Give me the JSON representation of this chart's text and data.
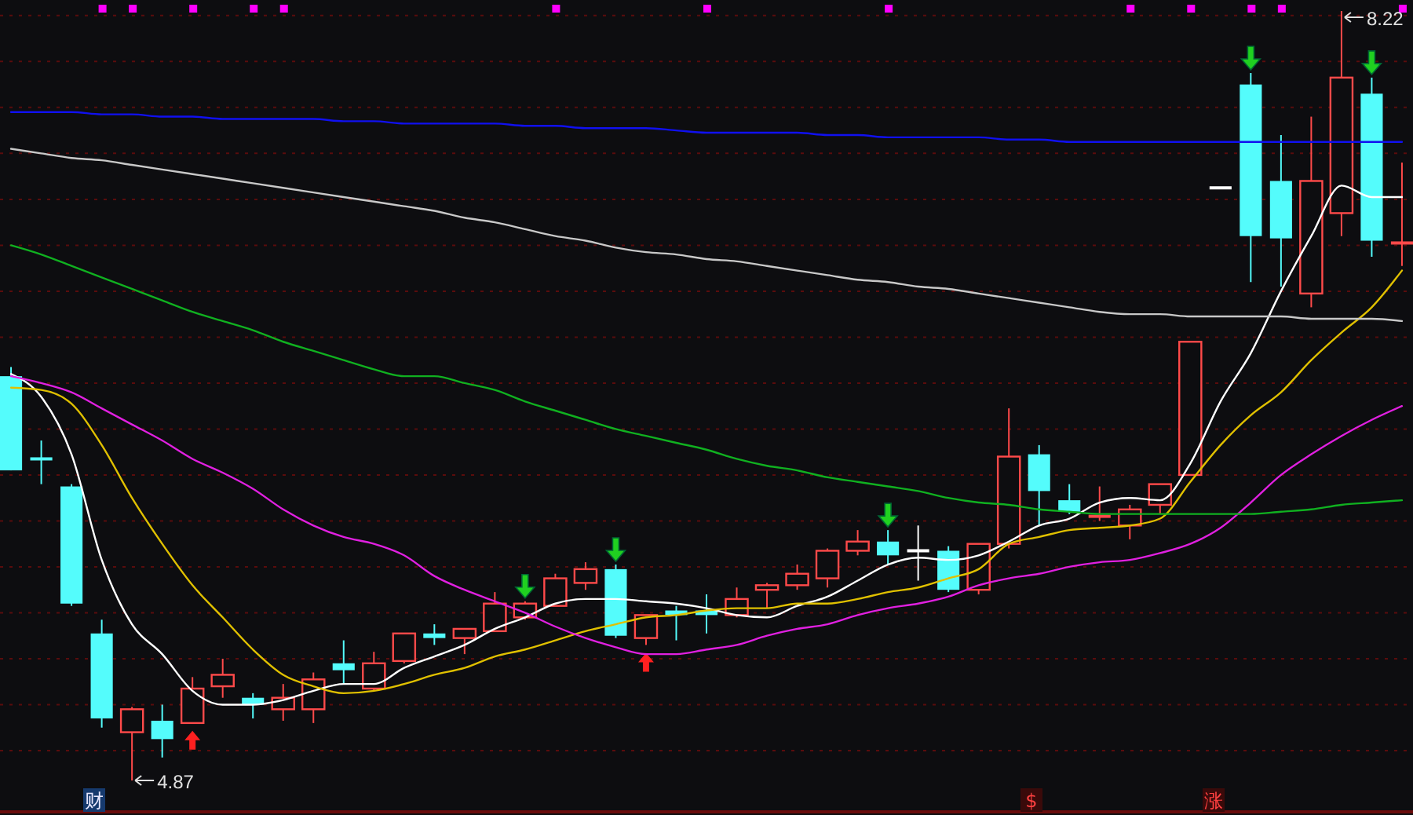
{
  "chart_data": {
    "type": "candlestick",
    "grid": true,
    "yticks": [
      {
        "value": 5.0,
        "label": null
      },
      {
        "value": 5.2,
        "label": null
      },
      {
        "value": 5.4,
        "label": null
      },
      {
        "value": 5.6,
        "label": null
      },
      {
        "value": 5.8,
        "label": null
      },
      {
        "value": 6.0,
        "label": null
      },
      {
        "value": 6.2,
        "label": null
      },
      {
        "value": 6.4,
        "label": null
      },
      {
        "value": 6.6,
        "label": null
      },
      {
        "value": 6.8,
        "label": null
      },
      {
        "value": 7.0,
        "label": null
      },
      {
        "value": 7.2,
        "label": null
      },
      {
        "value": 7.4,
        "label": null
      },
      {
        "value": 7.6,
        "label": null
      },
      {
        "value": 7.8,
        "label": null
      },
      {
        "value": 8.0,
        "label": null
      },
      {
        "value": 8.2,
        "label": null
      }
    ],
    "categories": [
      null,
      null,
      null,
      null,
      null,
      null,
      null,
      null,
      null,
      null,
      null,
      null,
      null,
      null,
      null,
      null,
      null,
      null,
      null,
      null,
      null,
      null,
      null,
      null,
      null,
      null,
      null,
      null,
      null,
      null,
      null,
      null,
      null,
      null,
      null,
      null,
      null,
      null,
      null,
      null,
      null,
      null,
      null,
      null,
      null,
      null,
      null
    ],
    "ohlc": [
      [
        6.63,
        6.67,
        6.22,
        6.22
      ],
      [
        6.27,
        6.35,
        6.16,
        6.27
      ],
      [
        6.15,
        6.16,
        5.63,
        5.64
      ],
      [
        5.51,
        5.57,
        5.1,
        5.14
      ],
      [
        5.08,
        5.19,
        4.87,
        5.18
      ],
      [
        5.13,
        5.2,
        4.97,
        5.05
      ],
      [
        5.12,
        5.32,
        5.12,
        5.27
      ],
      [
        5.28,
        5.4,
        5.23,
        5.33
      ],
      [
        5.23,
        5.25,
        5.14,
        5.2
      ],
      [
        5.18,
        5.29,
        5.13,
        5.23
      ],
      [
        5.18,
        5.34,
        5.12,
        5.31
      ],
      [
        5.38,
        5.48,
        5.29,
        5.35
      ],
      [
        5.27,
        5.43,
        5.26,
        5.38
      ],
      [
        5.39,
        5.51,
        5.38,
        5.51
      ],
      [
        5.51,
        5.55,
        5.46,
        5.49
      ],
      [
        5.49,
        5.53,
        5.42,
        5.53
      ],
      [
        5.52,
        5.69,
        5.52,
        5.64
      ],
      [
        5.58,
        5.65,
        5.57,
        5.64
      ],
      [
        5.63,
        5.77,
        5.63,
        5.75
      ],
      [
        5.73,
        5.82,
        5.7,
        5.79
      ],
      [
        5.79,
        5.81,
        5.49,
        5.5
      ],
      [
        5.49,
        5.59,
        5.46,
        5.59
      ],
      [
        5.61,
        5.63,
        5.48,
        5.59
      ],
      [
        5.61,
        5.68,
        5.51,
        5.59
      ],
      [
        5.59,
        5.71,
        5.58,
        5.66
      ],
      [
        5.7,
        5.73,
        5.62,
        5.72
      ],
      [
        5.72,
        5.81,
        5.7,
        5.77
      ],
      [
        5.75,
        5.88,
        5.71,
        5.87
      ],
      [
        5.87,
        5.96,
        5.85,
        5.91
      ],
      [
        5.91,
        5.96,
        5.81,
        5.85
      ],
      [
        5.87,
        5.98,
        5.74,
        5.87
      ],
      [
        5.87,
        5.89,
        5.69,
        5.7
      ],
      [
        5.7,
        5.9,
        5.68,
        5.9
      ],
      [
        5.9,
        6.49,
        5.88,
        6.28
      ],
      [
        6.29,
        6.33,
        5.98,
        6.13
      ],
      [
        6.09,
        6.16,
        6.03,
        6.04
      ],
      [
        6.02,
        6.15,
        6.0,
        6.02
      ],
      [
        5.98,
        6.07,
        5.92,
        6.05
      ],
      [
        6.07,
        6.16,
        6.03,
        6.16
      ],
      [
        6.2,
        6.78,
        6.2,
        6.78
      ],
      [
        7.45,
        7.45,
        7.45,
        7.45
      ],
      [
        7.9,
        7.95,
        7.04,
        7.24
      ],
      [
        7.48,
        7.68,
        7.02,
        7.23
      ],
      [
        6.99,
        7.76,
        6.93,
        7.48
      ],
      [
        7.34,
        8.22,
        7.24,
        7.93
      ],
      [
        7.86,
        7.93,
        7.15,
        7.22
      ],
      [
        7.21,
        7.56,
        7.11,
        7.21
      ]
    ],
    "colors": [
      "#54fcfc",
      "#54fcfc",
      "#54fcfc",
      "#54fcfc",
      "#ff4a4a",
      "#54fcfc",
      "#ff4a4a",
      "#ff4a4a",
      "#54fcfc",
      "#ff4a4a",
      "#ff4a4a",
      "#54fcfc",
      "#ff4a4a",
      "#ff4a4a",
      "#54fcfc",
      "#ff4a4a",
      "#ff4a4a",
      "#ff4a4a",
      "#ff4a4a",
      "#ff4a4a",
      "#54fcfc",
      "#ff4a4a",
      "#54fcfc",
      "#54fcfc",
      "#ff4a4a",
      "#ff4a4a",
      "#ff4a4a",
      "#ff4a4a",
      "#ff4a4a",
      "#54fcfc",
      "#ffffff",
      "#54fcfc",
      "#ff4a4a",
      "#ff4a4a",
      "#54fcfc",
      "#54fcfc",
      "#ff4a4a",
      "#ff4a4a",
      "#ff4a4a",
      "#ff4a4a",
      "#ffffff",
      "#54fcfc",
      "#54fcfc",
      "#ff4a4a",
      "#ff4a4a",
      "#54fcfc",
      "#ff4a4a"
    ],
    "series": [
      {
        "type": "line",
        "color": "#ffffff",
        "values": [
          6.64,
          6.54,
          6.29,
          5.83,
          5.55,
          5.42,
          5.26,
          5.2,
          5.2,
          5.22,
          5.26,
          5.29,
          5.29,
          5.36,
          5.41,
          5.46,
          5.53,
          5.58,
          5.64,
          5.66,
          5.66,
          5.65,
          5.64,
          5.62,
          5.59,
          5.58,
          5.63,
          5.67,
          5.74,
          5.81,
          5.84,
          5.83,
          5.85,
          5.91,
          5.98,
          6.01,
          6.08,
          6.1,
          6.09,
          6.25,
          6.52,
          6.73,
          7.0,
          7.24,
          7.46,
          7.41,
          7.41
        ]
      },
      {
        "type": "line",
        "color": "#e0c000",
        "values": [
          6.58,
          6.57,
          6.51,
          6.33,
          6.1,
          5.9,
          5.72,
          5.58,
          5.44,
          5.33,
          5.28,
          5.25,
          5.26,
          5.29,
          5.33,
          5.36,
          5.41,
          5.44,
          5.48,
          5.52,
          5.55,
          5.58,
          5.59,
          5.61,
          5.62,
          5.62,
          5.64,
          5.64,
          5.66,
          5.69,
          5.71,
          5.75,
          5.79,
          5.9,
          5.93,
          5.96,
          5.97,
          5.98,
          6.01,
          6.17,
          6.33,
          6.46,
          6.56,
          6.7,
          6.82,
          6.93,
          7.09
        ]
      },
      {
        "type": "line",
        "color": "#e020e0",
        "values": [
          6.63,
          6.6,
          6.56,
          6.49,
          6.42,
          6.35,
          6.27,
          6.21,
          6.14,
          6.05,
          5.98,
          5.93,
          5.9,
          5.85,
          5.76,
          5.7,
          5.65,
          5.6,
          5.54,
          5.49,
          5.45,
          5.42,
          5.42,
          5.44,
          5.46,
          5.5,
          5.53,
          5.55,
          5.59,
          5.62,
          5.64,
          5.67,
          5.72,
          5.75,
          5.77,
          5.8,
          5.82,
          5.83,
          5.86,
          5.9,
          5.97,
          6.08,
          6.2,
          6.29,
          6.37,
          6.44,
          6.5
        ]
      },
      {
        "type": "line",
        "color": "#10b020",
        "values": [
          7.2,
          7.16,
          7.11,
          7.06,
          7.01,
          6.96,
          6.91,
          6.87,
          6.83,
          6.78,
          6.74,
          6.7,
          6.66,
          6.63,
          6.63,
          6.6,
          6.57,
          6.52,
          6.48,
          6.44,
          6.4,
          6.37,
          6.34,
          6.31,
          6.27,
          6.24,
          6.22,
          6.19,
          6.17,
          6.15,
          6.13,
          6.1,
          6.08,
          6.07,
          6.05,
          6.04,
          6.03,
          6.03,
          6.03,
          6.03,
          6.03,
          6.03,
          6.04,
          6.05,
          6.07,
          6.08,
          6.09
        ]
      },
      {
        "type": "line",
        "color": "#c8c8c8",
        "values": [
          7.62,
          7.6,
          7.58,
          7.57,
          7.55,
          7.53,
          7.51,
          7.49,
          7.47,
          7.45,
          7.43,
          7.41,
          7.39,
          7.37,
          7.35,
          7.32,
          7.3,
          7.27,
          7.24,
          7.22,
          7.19,
          7.17,
          7.16,
          7.14,
          7.13,
          7.11,
          7.09,
          7.07,
          7.05,
          7.04,
          7.02,
          7.01,
          6.99,
          6.97,
          6.95,
          6.93,
          6.91,
          6.9,
          6.9,
          6.89,
          6.89,
          6.89,
          6.89,
          6.88,
          6.88,
          6.88,
          6.87
        ]
      },
      {
        "type": "line",
        "color": "#1010f0",
        "values": [
          7.78,
          7.78,
          7.78,
          7.77,
          7.77,
          7.76,
          7.76,
          7.75,
          7.75,
          7.75,
          7.75,
          7.74,
          7.74,
          7.73,
          7.73,
          7.73,
          7.73,
          7.72,
          7.72,
          7.71,
          7.71,
          7.71,
          7.7,
          7.69,
          7.69,
          7.69,
          7.69,
          7.68,
          7.68,
          7.67,
          7.67,
          7.67,
          7.67,
          7.66,
          7.66,
          7.65,
          7.65,
          7.65,
          7.65,
          7.65,
          7.65,
          7.65,
          7.65,
          7.65,
          7.65,
          7.65,
          7.65
        ]
      }
    ],
    "annotations": [
      "8.22",
      "4.87",
      "财",
      "$",
      "涨"
    ]
  }
}
